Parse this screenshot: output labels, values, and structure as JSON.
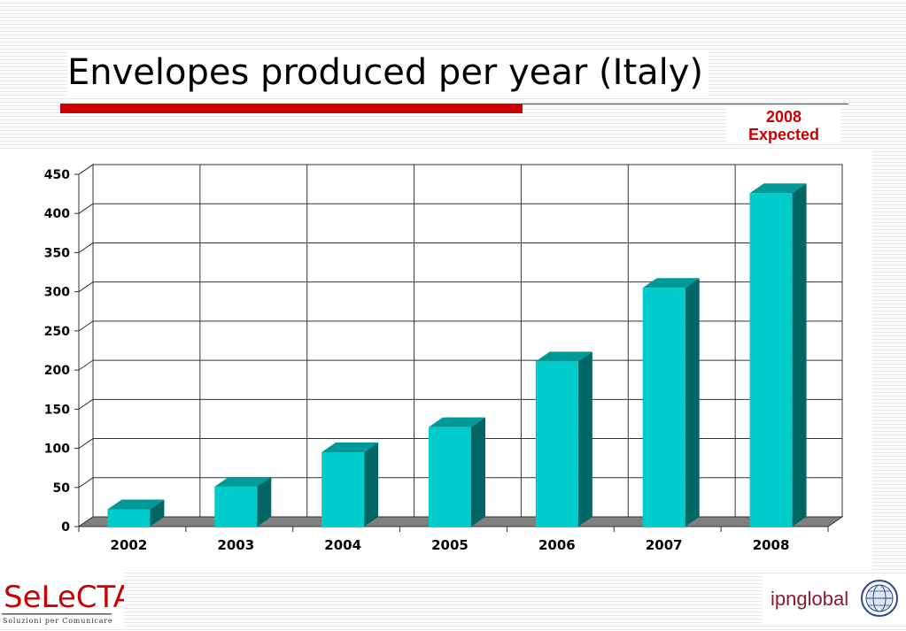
{
  "slide": {
    "title": "Envelopes produced per year (Italy)",
    "note_line1": "2008",
    "note_line2": "Expected"
  },
  "logos": {
    "left": {
      "name": "SeLeCTA",
      "tagline": "Soluzioni per Comunicare"
    },
    "right": {
      "name": "ipnglobal"
    }
  },
  "colors": {
    "accent_red": "#cc0000",
    "bar_front": "#00cccc",
    "bar_top": "#009999",
    "bar_side": "#006666",
    "floor": "#808080"
  },
  "chart_data": {
    "type": "bar",
    "categories": [
      "2002",
      "2003",
      "2004",
      "2005",
      "2006",
      "2007",
      "2008"
    ],
    "values": [
      22,
      51,
      95,
      127,
      211,
      305,
      426
    ],
    "yticks": [
      0,
      50,
      100,
      150,
      200,
      250,
      300,
      350,
      400,
      450
    ],
    "ylim": [
      0,
      450
    ],
    "grid": true,
    "three_d": true
  }
}
